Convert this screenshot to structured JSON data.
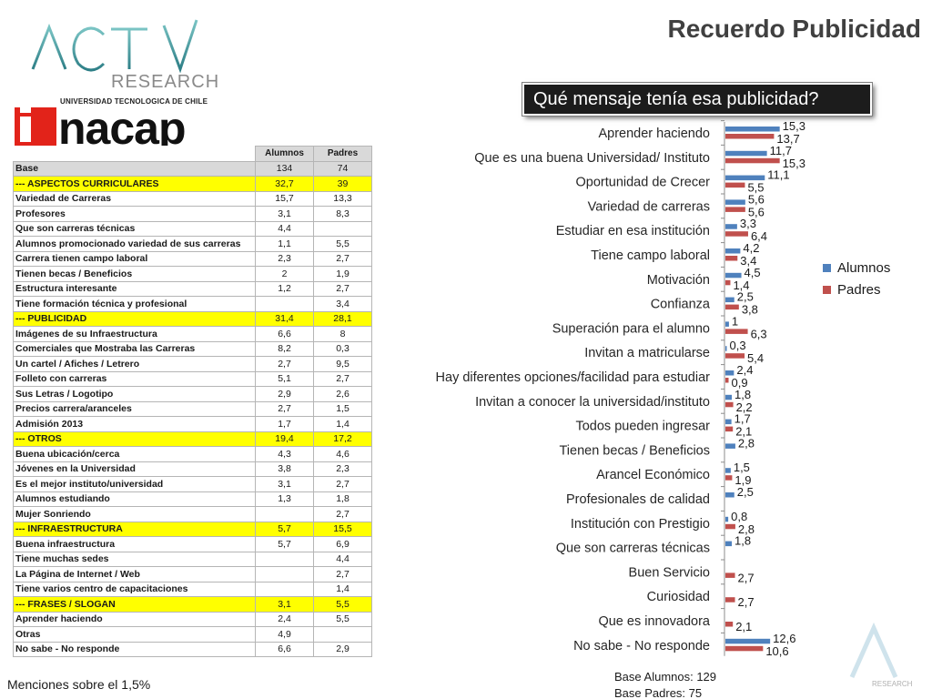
{
  "page": {
    "title": "Recuerdo Publicidad",
    "question": "Qué mensaje tenía esa publicidad?",
    "footnote_menciones": "Menciones sobre el 1,5%",
    "base_alumnos": "Base Alumnos: 129",
    "base_padres": "Base Padres: 75"
  },
  "logos": {
    "activ_text": "ACTIV",
    "research_text": "RESEARCH",
    "inacap_caption": "UNIVERSIDAD TECNOLOGICA DE CHILE",
    "inacap_text": "nacap",
    "corner_text": "RESEARCH"
  },
  "colors": {
    "alumnos": "#4f81bd",
    "padres": "#c0504d",
    "highlight": "#ffff00",
    "header_gray": "#d9d9d9"
  },
  "table": {
    "headers": [
      "",
      "Alumnos",
      "Padres"
    ],
    "rows": [
      {
        "label": "Base",
        "alumnos": "134",
        "padres": "74",
        "type": "base"
      },
      {
        "label": "--- ASPECTOS CURRICULARES",
        "alumnos": "32,7",
        "padres": "39",
        "type": "section"
      },
      {
        "label": "Variedad de Carreras",
        "alumnos": "15,7",
        "padres": "13,3",
        "type": "item"
      },
      {
        "label": "Profesores",
        "alumnos": "3,1",
        "padres": "8,3",
        "type": "item"
      },
      {
        "label": "Que son carreras técnicas",
        "alumnos": "4,4",
        "padres": "",
        "type": "item"
      },
      {
        "label": "Alumnos promocionado variedad de sus carreras",
        "alumnos": "1,1",
        "padres": "5,5",
        "type": "item"
      },
      {
        "label": "Carrera tienen campo laboral",
        "alumnos": "2,3",
        "padres": "2,7",
        "type": "item"
      },
      {
        "label": "Tienen becas / Beneficios",
        "alumnos": "2",
        "padres": "1,9",
        "type": "item"
      },
      {
        "label": "Estructura interesante",
        "alumnos": "1,2",
        "padres": "2,7",
        "type": "item"
      },
      {
        "label": "Tiene formación técnica y profesional",
        "alumnos": "",
        "padres": "3,4",
        "type": "item"
      },
      {
        "label": "--- PUBLICIDAD",
        "alumnos": "31,4",
        "padres": "28,1",
        "type": "section"
      },
      {
        "label": "Imágenes de su Infraestructura",
        "alumnos": "6,6",
        "padres": "8",
        "type": "item"
      },
      {
        "label": "Comerciales que Mostraba las Carreras",
        "alumnos": "8,2",
        "padres": "0,3",
        "type": "item"
      },
      {
        "label": "Un cartel / Afiches / Letrero",
        "alumnos": "2,7",
        "padres": "9,5",
        "type": "item"
      },
      {
        "label": "Folleto con carreras",
        "alumnos": "5,1",
        "padres": "2,7",
        "type": "item"
      },
      {
        "label": "Sus Letras / Logotipo",
        "alumnos": "2,9",
        "padres": "2,6",
        "type": "item"
      },
      {
        "label": "Precios carrera/aranceles",
        "alumnos": "2,7",
        "padres": "1,5",
        "type": "item"
      },
      {
        "label": "Admisión 2013",
        "alumnos": "1,7",
        "padres": "1,4",
        "type": "item"
      },
      {
        "label": "--- OTROS",
        "alumnos": "19,4",
        "padres": "17,2",
        "type": "section"
      },
      {
        "label": "Buena ubicación/cerca",
        "alumnos": "4,3",
        "padres": "4,6",
        "type": "item"
      },
      {
        "label": "Jóvenes en la Universidad",
        "alumnos": "3,8",
        "padres": "2,3",
        "type": "item"
      },
      {
        "label": "Es el mejor instituto/universidad",
        "alumnos": "3,1",
        "padres": "2,7",
        "type": "item"
      },
      {
        "label": "Alumnos estudiando",
        "alumnos": "1,3",
        "padres": "1,8",
        "type": "item"
      },
      {
        "label": "Mujer Sonriendo",
        "alumnos": "",
        "padres": "2,7",
        "type": "item"
      },
      {
        "label": "--- INFRAESTRUCTURA",
        "alumnos": "5,7",
        "padres": "15,5",
        "type": "section"
      },
      {
        "label": "Buena infraestructura",
        "alumnos": "5,7",
        "padres": "6,9",
        "type": "item"
      },
      {
        "label": "Tiene muchas sedes",
        "alumnos": "",
        "padres": "4,4",
        "type": "item"
      },
      {
        "label": "La Página de Internet / Web",
        "alumnos": "",
        "padres": "2,7",
        "type": "item"
      },
      {
        "label": "Tiene varios centro de capacitaciones",
        "alumnos": "",
        "padres": "1,4",
        "type": "item"
      },
      {
        "label": "--- FRASES / SLOGAN",
        "alumnos": "3,1",
        "padres": "5,5",
        "type": "section"
      },
      {
        "label": "Aprender haciendo",
        "alumnos": "2,4",
        "padres": "5,5",
        "type": "item"
      },
      {
        "label": "Otras",
        "alumnos": "4,9",
        "padres": "",
        "type": "item"
      },
      {
        "label": "No sabe - No responde",
        "alumnos": "6,6",
        "padres": "2,9",
        "type": "item"
      }
    ]
  },
  "chart_data": {
    "type": "bar",
    "orientation": "horizontal",
    "categories": [
      "Aprender haciendo",
      "Que es una buena Universidad/ Instituto",
      "Oportunidad de Crecer",
      "Variedad de carreras",
      "Estudiar en esa institución",
      "Tiene campo laboral",
      "Motivación",
      "Confianza",
      "Superación para el alumno",
      "Invitan a matricularse",
      "Hay diferentes opciones/facilidad para estudiar",
      "Invitan a conocer la universidad/instituto",
      "Todos pueden ingresar",
      "Tienen becas / Beneficios",
      "Arancel Económico",
      "Profesionales de calidad",
      "Institución con Prestigio",
      "Que son carreras técnicas",
      "Buen Servicio",
      "Curiosidad",
      "Que es innovadora",
      "No sabe - No responde"
    ],
    "series": [
      {
        "name": "Alumnos",
        "values": [
          15.3,
          11.7,
          11.1,
          5.6,
          3.3,
          4.2,
          4.5,
          2.5,
          1,
          0.3,
          2.4,
          1.8,
          1.7,
          2.8,
          1.5,
          2.5,
          0.8,
          1.8,
          null,
          null,
          null,
          12.6
        ],
        "labels": [
          "15,3",
          "11,7",
          "11,1",
          "5,6",
          "3,3",
          "4,2",
          "4,5",
          "2,5",
          "1",
          "0,3",
          "2,4",
          "1,8",
          "1,7",
          "2,8",
          "1,5",
          "2,5",
          "0,8",
          "1,8",
          "",
          "",
          "",
          "12,6"
        ]
      },
      {
        "name": "Padres",
        "values": [
          13.7,
          15.3,
          5.5,
          5.6,
          6.4,
          3.4,
          1.4,
          3.8,
          6.3,
          5.4,
          0.9,
          2.2,
          2.1,
          null,
          1.9,
          null,
          2.8,
          null,
          2.7,
          2.7,
          2.1,
          10.6
        ],
        "labels": [
          "13,7",
          "15,3",
          "5,5",
          "5,6",
          "6,4",
          "3,4",
          "1,4",
          "3,8",
          "6,3",
          "5,4",
          "0,9",
          "2,2",
          "2,1",
          "",
          "1,9",
          "",
          "2,8",
          "",
          "2,7",
          "2,7",
          "2,1",
          "10,6"
        ]
      }
    ],
    "xlim": [
      0,
      16
    ],
    "legend": "right",
    "grid": false
  }
}
